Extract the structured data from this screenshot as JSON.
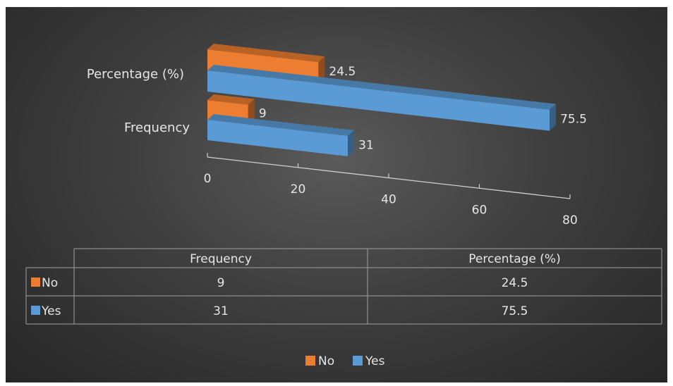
{
  "colors": {
    "no": "#ed7d31",
    "yes": "#5b9bd5"
  },
  "chart_data": {
    "type": "bar",
    "orientation": "horizontal",
    "style": "3d",
    "title": "",
    "categories": [
      "Frequency",
      "Percentage (%)"
    ],
    "series": [
      {
        "name": "No",
        "values": [
          9,
          24.5
        ]
      },
      {
        "name": "Yes",
        "values": [
          31,
          75.5
        ]
      }
    ],
    "xlim": [
      0,
      80
    ],
    "xticks": [
      "0",
      "20",
      "40",
      "60",
      "80"
    ],
    "data_table": {
      "headers": [
        "Frequency",
        "Percentage (%)"
      ],
      "rows": [
        {
          "label": "No",
          "values": [
            "9",
            "24.5"
          ]
        },
        {
          "label": "Yes",
          "values": [
            "31",
            "75.5"
          ]
        }
      ]
    },
    "legend": {
      "position": "bottom",
      "items": [
        "No",
        "Yes"
      ]
    }
  }
}
